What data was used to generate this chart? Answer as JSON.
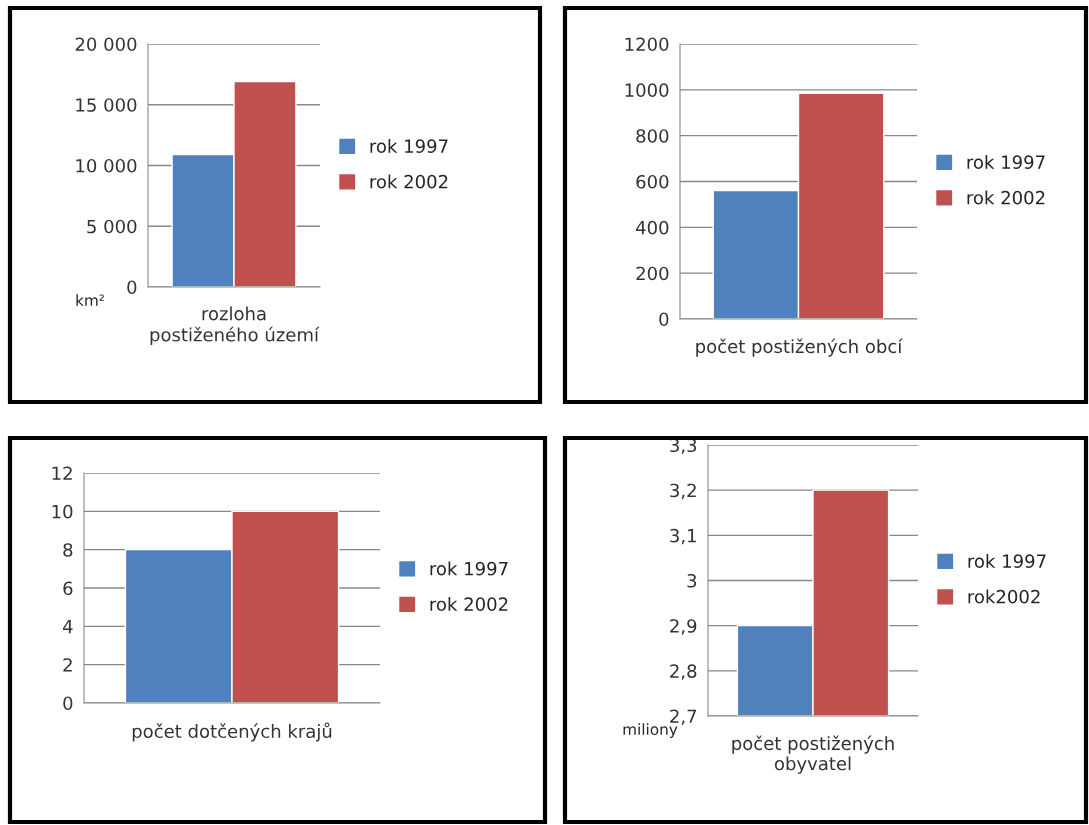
{
  "chart_data": [
    {
      "type": "bar",
      "categories": [
        "rozloha\npostiženého území"
      ],
      "ylabel": "km²",
      "ylim": [
        0,
        20000
      ],
      "yticks": [
        0,
        {
          "value": 5000,
          "label": "5 000"
        },
        {
          "value": 10000,
          "label": "10 000"
        },
        {
          "value": 15000,
          "label": "15 000"
        },
        {
          "value": 20000,
          "label": "20 000"
        }
      ],
      "series": [
        {
          "name": "rok 1997",
          "color": "#4f81bd",
          "values": [
            10900
          ]
        },
        {
          "name": "rok 2002",
          "color": "#c0504d",
          "values": [
            16900
          ]
        }
      ],
      "grid": "y",
      "legend": "right"
    },
    {
      "type": "bar",
      "categories": [
        "počet postižených obcí"
      ],
      "ylim": [
        0,
        1200
      ],
      "yticks": [
        0,
        200,
        400,
        600,
        800,
        1000,
        1200
      ],
      "series": [
        {
          "name": "rok 1997",
          "color": "#4f81bd",
          "values": [
            560
          ]
        },
        {
          "name": "rok 2002",
          "color": "#c0504d",
          "values": [
            985
          ]
        }
      ],
      "grid": "y",
      "legend": "right"
    },
    {
      "type": "bar",
      "categories": [
        "počet dotčených krajů"
      ],
      "ylim": [
        0,
        12
      ],
      "yticks": [
        0,
        2,
        4,
        6,
        8,
        10,
        12
      ],
      "series": [
        {
          "name": "rok 1997",
          "color": "#4f81bd",
          "values": [
            8
          ]
        },
        {
          "name": "rok 2002",
          "color": "#c0504d",
          "values": [
            10
          ]
        }
      ],
      "grid": "y",
      "legend": "right"
    },
    {
      "type": "bar",
      "categories": [
        "počet postižených\nobyvatel"
      ],
      "ylabel": "miliony",
      "ylim": [
        2.7,
        3.3
      ],
      "yticks": [
        {
          "value": 2.7,
          "label": "2,7"
        },
        {
          "value": 2.8,
          "label": "2,8"
        },
        {
          "value": 2.9,
          "label": "2,9"
        },
        3,
        {
          "value": 3.1,
          "label": "3,1"
        },
        {
          "value": 3.2,
          "label": "3,2"
        },
        {
          "value": 3.3,
          "label": "3,3"
        }
      ],
      "series": [
        {
          "name": "rok 1997",
          "color": "#4f81bd",
          "values": [
            2.9
          ]
        },
        {
          "name": "rok2002",
          "color": "#c0504d",
          "values": [
            3.2
          ]
        }
      ],
      "grid": "y",
      "legend": "right"
    }
  ]
}
